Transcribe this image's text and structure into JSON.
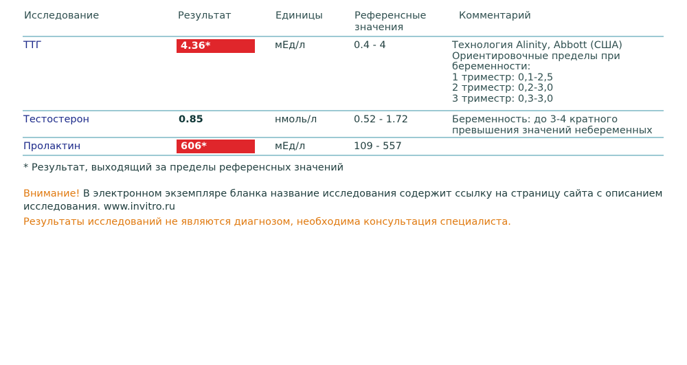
{
  "table": {
    "headers": [
      "Исследование",
      "Результат",
      "Единицы",
      "Референсные значения",
      "Комментарий"
    ],
    "rows": [
      {
        "name": "ТТГ",
        "result": "4.36*",
        "flagged": true,
        "units": "мЕд/л",
        "reference": "0.4 - 4",
        "comment": [
          "Технология Alinity, Abbott (США)",
          "Ориентировочные пределы при",
          "беременности:",
          "1 триместр: 0,1-2,5",
          "2 триместр: 0,2-3,0",
          "3 триместр: 0,3-3,0"
        ]
      },
      {
        "name": "Тестостерон",
        "result": "0.85",
        "flagged": false,
        "units": "нмоль/л",
        "reference": "0.52 - 1.72",
        "comment": [
          "Беременность: до 3-4 кратного",
          "превышения значений небеременных"
        ]
      },
      {
        "name": "Пролактин",
        "result": "606*",
        "flagged": true,
        "units": "мЕд/л",
        "reference": "109 - 557",
        "comment": []
      }
    ]
  },
  "footnote": "* Результат, выходящий за пределы референсных значений",
  "notice": {
    "label": "Внимание!",
    "text": " В электронном экземпляре бланка название исследования содержит ссылку на страницу сайта с описанием",
    "text2": "исследования. www.invitro.ru",
    "disclaimer": "Результаты исследований не являются диагнозом, необходима консультация специалиста."
  },
  "colors": {
    "flag": "#e0262b",
    "notice": "#e07a10",
    "name": "#1c2a8a",
    "rule": "#9cc9d3"
  }
}
